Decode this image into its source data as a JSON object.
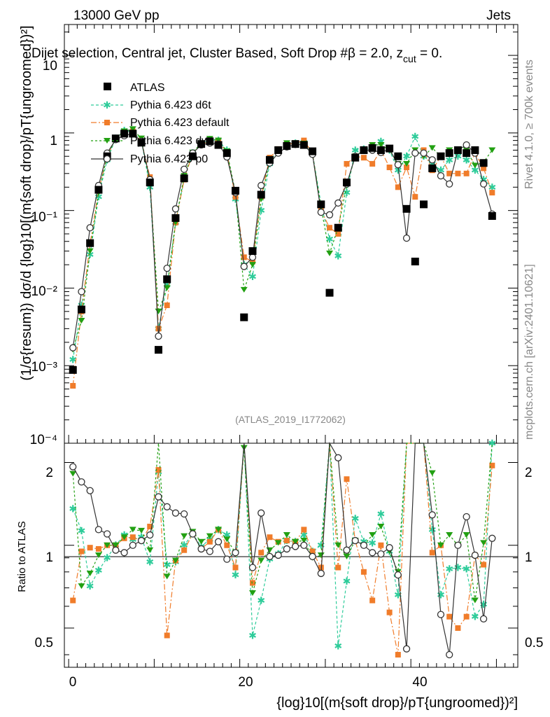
{
  "header": {
    "left": "13000 GeV pp",
    "right": "Jets",
    "plot_title": "Dijet selection, Central jet, Cluster Based, Soft Drop #β = 2.0, z",
    "plot_title_sub": "cut",
    "plot_title_end": " = 0.",
    "watermark": "(ATLAS_2019_I1772062)",
    "side_rivet": "Rivet 4.1.0, ≥ 700k events",
    "side_mcplots": "mcplots.cern.ch [arXiv:2401.10621]"
  },
  "axes": {
    "ylabel_main": "(1/σ{resum}) dσ/d {log}10[(m{soft drop}/pT{ungroomed})²]",
    "ylabel_ratio": "Ratio to ATLAS",
    "xlabel": "{log}10[(m{soft drop}/pT{ungroomed})²]",
    "xticks": [
      "0",
      "20",
      "40"
    ],
    "yticks_main": [
      "10",
      "1",
      "10⁻¹",
      "10⁻²",
      "10⁻³",
      "10⁻⁴"
    ],
    "yticks_ratio": [
      "2",
      "1",
      "0.5"
    ]
  },
  "colors": {
    "atlas": "#000000",
    "d6t": "#2ecc9a",
    "default": "#f07c2a",
    "dw": "#22a012",
    "p0": "#333333"
  },
  "chart_data": {
    "type": "line",
    "title": "Dijet selection, Central jet, Cluster Based, Soft Drop #β = 2.0, z_cut = 0.",
    "xlabel": "{log}10[(m^{soft drop}/pT^{ungroomed})^2]",
    "ylabel": "(1/σ_{resum}) dσ/d {log}10[(m^{soft drop}/pT^{ungroomed})^2]",
    "xlim": [
      -0.5,
      52.5
    ],
    "ylim": [
      0.0001,
      25
    ],
    "yscale": "log",
    "ratio_ylim": [
      0.36,
      2.35
    ],
    "x": [
      0.5,
      1.5,
      2.5,
      3.5,
      4.5,
      5.5,
      6.5,
      7.5,
      8.5,
      9.5,
      10.5,
      11.5,
      12.5,
      13.5,
      14.5,
      15.5,
      16.5,
      17.5,
      18.5,
      19.5,
      20.5,
      21.5,
      22.5,
      23.5,
      24.5,
      25.5,
      26.5,
      27.5,
      28.5,
      29.5,
      30.5,
      31.5,
      32.5,
      33.5,
      34.5,
      35.5,
      36.5,
      37.5,
      38.5,
      39.5,
      40.5,
      41.5,
      42.5,
      43.5,
      44.5,
      45.5,
      46.5,
      47.5,
      48.5,
      49.5
    ],
    "series": [
      {
        "name": "ATLAS",
        "values": [
          0.00088,
          0.0053,
          0.038,
          0.185,
          0.5,
          0.85,
          0.98,
          0.98,
          0.75,
          0.23,
          0.0016,
          0.013,
          0.08,
          0.26,
          0.5,
          0.72,
          0.78,
          0.7,
          0.55,
          0.18,
          0.0042,
          0.03,
          0.16,
          0.45,
          0.6,
          0.68,
          0.72,
          0.7,
          0.58,
          0.12,
          0.0087,
          0.06,
          0.23,
          0.48,
          0.6,
          0.64,
          0.6,
          0.63,
          0.5,
          0.105,
          0.022,
          0.12,
          0.35,
          0.5,
          0.55,
          0.6,
          0.55,
          0.6,
          0.41,
          0.085
        ]
      },
      {
        "name": "Pythia 6.423 d6t",
        "values": [
          0.0012,
          0.006,
          0.027,
          0.15,
          0.45,
          0.85,
          1.07,
          1.03,
          0.8,
          0.2,
          0.003,
          0.011,
          0.07,
          0.26,
          0.55,
          0.71,
          0.82,
          0.8,
          0.6,
          0.14,
          0.02,
          0.014,
          0.1,
          0.4,
          0.56,
          0.71,
          0.74,
          0.76,
          0.55,
          0.12,
          0.043,
          0.026,
          0.17,
          0.6,
          0.62,
          0.65,
          0.78,
          0.6,
          0.33,
          0.5,
          0.9,
          0.5,
          0.4,
          0.33,
          0.45,
          0.5,
          0.45,
          0.33,
          0.25,
          0.2
        ]
      },
      {
        "name": "Pythia 6.423 default",
        "values": [
          0.00055,
          0.005,
          0.037,
          0.18,
          0.5,
          0.85,
          1.04,
          1.05,
          0.78,
          0.27,
          0.003,
          0.006,
          0.07,
          0.25,
          0.55,
          0.7,
          0.8,
          0.8,
          0.55,
          0.15,
          0.025,
          0.022,
          0.15,
          0.48,
          0.62,
          0.71,
          0.74,
          0.8,
          0.55,
          0.1,
          0.06,
          0.05,
          0.4,
          0.5,
          0.48,
          0.4,
          0.6,
          0.36,
          0.2,
          0.36,
          0.15,
          0.6,
          0.33,
          0.5,
          0.3,
          0.3,
          0.3,
          0.55,
          0.35,
          0.17
        ]
      },
      {
        "name": "Pythia 6.423 dw",
        "values": [
          0.0016,
          0.0038,
          0.03,
          0.17,
          0.5,
          0.85,
          1.05,
          1.12,
          0.85,
          0.22,
          0.005,
          0.01,
          0.07,
          0.28,
          0.56,
          0.74,
          0.84,
          0.8,
          0.58,
          0.17,
          0.0095,
          0.02,
          0.14,
          0.43,
          0.61,
          0.74,
          0.74,
          0.73,
          0.52,
          0.11,
          0.028,
          0.06,
          0.21,
          0.5,
          0.6,
          0.7,
          0.7,
          0.6,
          0.4,
          0.4,
          0.6,
          0.5,
          0.64,
          0.5,
          0.6,
          0.6,
          0.6,
          0.38,
          0.42,
          0.6
        ]
      },
      {
        "name": "Pythia 6.423 p0",
        "values": [
          0.0017,
          0.009,
          0.06,
          0.21,
          0.55,
          0.82,
          0.92,
          0.98,
          0.78,
          0.25,
          0.0024,
          0.018,
          0.105,
          0.34,
          0.55,
          0.7,
          0.74,
          0.72,
          0.49,
          0.17,
          0.019,
          0.025,
          0.21,
          0.41,
          0.55,
          0.66,
          0.71,
          0.7,
          0.53,
          0.095,
          0.088,
          0.125,
          0.22,
          0.5,
          0.6,
          0.6,
          0.56,
          0.62,
          0.39,
          0.044,
          0.55,
          0.55,
          0.45,
          0.28,
          0.22,
          0.6,
          0.7,
          0.55,
          0.22,
          0.09
        ]
      }
    ],
    "ratio_series": [
      {
        "name": "Pythia 6.423 d6t",
        "values": [
          1.36,
          1.13,
          0.71,
          0.81,
          0.9,
          1.0,
          1.09,
          1.05,
          1.07,
          0.87,
          1.85,
          0.85,
          0.87,
          1.0,
          1.1,
          0.99,
          1.05,
          1.14,
          1.09,
          0.78,
          4.8,
          0.47,
          0.63,
          0.89,
          0.93,
          1.04,
          1.03,
          1.09,
          0.95,
          1.0,
          4.9,
          0.43,
          0.74,
          1.25,
          1.03,
          1.02,
          1.3,
          0.95,
          0.66,
          4.8,
          40.0,
          4.2,
          1.14,
          0.66,
          0.82,
          0.83,
          0.82,
          0.55,
          0.61,
          2.35
        ]
      },
      {
        "name": "Pythia 6.423 default",
        "values": [
          0.63,
          0.95,
          0.98,
          0.97,
          1.0,
          1.0,
          1.06,
          1.07,
          1.04,
          1.17,
          1.88,
          0.47,
          0.88,
          0.96,
          1.1,
          0.97,
          1.03,
          1.14,
          1.0,
          0.83,
          5.9,
          0.73,
          0.94,
          1.07,
          1.03,
          1.04,
          1.03,
          1.14,
          0.95,
          0.83,
          6.9,
          0.83,
          1.74,
          1.04,
          0.8,
          0.63,
          1.0,
          0.57,
          0.4,
          3.4,
          6.8,
          5.0,
          0.94,
          1.0,
          0.55,
          0.5,
          0.55,
          0.92,
          0.85,
          1.95
        ]
      },
      {
        "name": "Pythia 6.423 dw",
        "values": [
          1.82,
          0.71,
          0.79,
          0.92,
          1.0,
          1.0,
          1.07,
          1.14,
          1.13,
          0.96,
          3.1,
          0.77,
          0.88,
          1.08,
          1.12,
          1.03,
          1.08,
          1.14,
          1.05,
          0.94,
          2.26,
          0.67,
          0.88,
          0.96,
          1.02,
          1.09,
          1.03,
          1.04,
          0.9,
          0.92,
          3.2,
          1.0,
          0.91,
          1.04,
          1.0,
          1.09,
          1.17,
          0.95,
          0.8,
          3.8,
          27.0,
          4.2,
          1.83,
          1.0,
          1.09,
          1.0,
          1.09,
          0.63,
          1.02,
          7.0
        ]
      },
      {
        "name": "Pythia 6.423 p0",
        "values": [
          1.93,
          1.7,
          1.58,
          1.14,
          1.1,
          0.96,
          0.94,
          1.0,
          1.04,
          1.09,
          1.5,
          1.38,
          1.31,
          1.3,
          1.1,
          0.97,
          0.95,
          1.03,
          0.89,
          0.94,
          4.5,
          0.83,
          1.31,
          0.91,
          0.92,
          0.97,
          0.99,
          1.0,
          0.91,
          0.79,
          10.0,
          2.08,
          0.96,
          1.04,
          1.0,
          0.94,
          0.93,
          0.98,
          0.78,
          0.42,
          25.0,
          4.6,
          1.29,
          0.56,
          0.4,
          1.0,
          1.27,
          0.92,
          0.54,
          1.06
        ]
      }
    ]
  }
}
